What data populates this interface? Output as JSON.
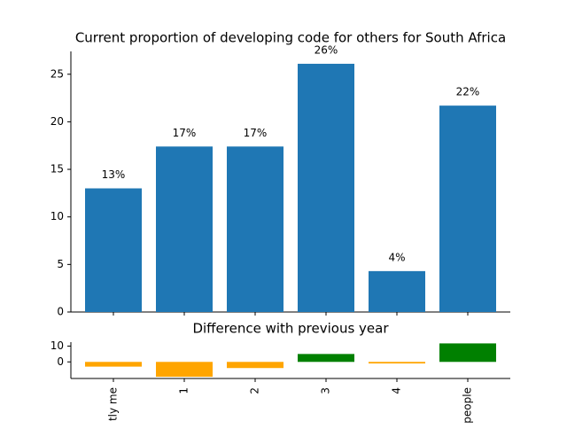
{
  "chart_data": [
    {
      "type": "bar",
      "title": "Current proportion of developing code for others for South Africa",
      "categories": [
        "tly me",
        "1",
        "2",
        "3",
        "4",
        "people"
      ],
      "values": [
        13,
        17.4,
        17.4,
        26.1,
        4.3,
        21.7
      ],
      "value_labels": [
        "13%",
        "17%",
        "17%",
        "26%",
        "4%",
        "22%"
      ],
      "color": "#1f77b4",
      "ylim": [
        0,
        27.4
      ],
      "yticks": [
        0,
        5,
        10,
        15,
        20,
        25
      ]
    },
    {
      "type": "bar",
      "title": "Difference with previous year",
      "categories": [
        "tly me",
        "1",
        "2",
        "3",
        "4",
        "people"
      ],
      "values": [
        -3,
        -9.4,
        -3.9,
        5,
        -1,
        11.7
      ],
      "colors": [
        "orange",
        "orange",
        "orange",
        "green",
        "orange",
        "green"
      ],
      "ylim": [
        -10.5,
        12.5
      ],
      "yticks": [
        0,
        10
      ]
    }
  ]
}
